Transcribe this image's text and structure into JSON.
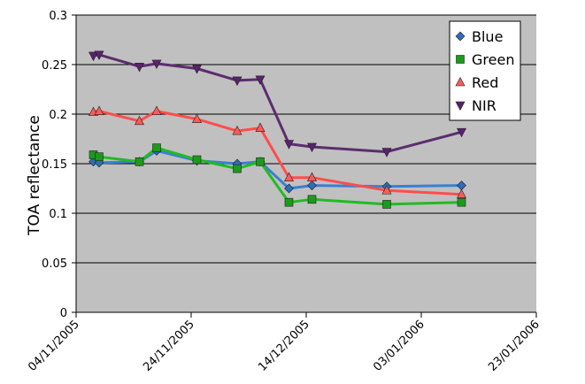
{
  "chart_data": {
    "type": "line",
    "title": "",
    "xlabel": "",
    "ylabel": "TOA reflectance",
    "x_ticks": [
      "04/11/2005",
      "24/11/2005",
      "14/12/2005",
      "03/01/2006",
      "23/01/2006"
    ],
    "xlim": [
      "2005-11-04",
      "2006-01-23"
    ],
    "ylim": [
      0,
      0.3
    ],
    "y_ticks": [
      "0",
      "0.05",
      "0.1",
      "0.15",
      "0.2",
      "0.25",
      "0.3"
    ],
    "grid": true,
    "legend_position": "top-right",
    "plot_background": "#c0c0c0",
    "x": [
      "2005-11-07",
      "2005-11-08",
      "2005-11-15",
      "2005-11-18",
      "2005-11-25",
      "2005-12-02",
      "2005-12-06",
      "2005-12-11",
      "2005-12-15",
      "2005-12-28",
      "2006-01-10"
    ],
    "series": [
      {
        "name": "Blue",
        "color": "#3a7fd5",
        "marker": "diamond",
        "marker_color": "#2e6db8",
        "values": [
          0.152,
          0.151,
          0.152,
          0.163,
          0.153,
          0.15,
          0.152,
          0.125,
          0.128,
          0.127,
          0.128
        ]
      },
      {
        "name": "Green",
        "color": "#22bb22",
        "marker": "square",
        "marker_color": "#1c9a1c",
        "values": [
          0.159,
          0.157,
          0.152,
          0.166,
          0.154,
          0.145,
          0.152,
          0.111,
          0.114,
          0.109,
          0.111
        ]
      },
      {
        "name": "Red",
        "color": "#ff4d4d",
        "marker": "triangle-up",
        "marker_color": "#ff5a5a",
        "values": [
          0.202,
          0.203,
          0.193,
          0.203,
          0.195,
          0.183,
          0.186,
          0.136,
          0.136,
          0.123,
          0.119
        ]
      },
      {
        "name": "NIR",
        "color": "#5c2d6e",
        "marker": "triangle-down",
        "marker_color": "#5a2270",
        "values": [
          0.259,
          0.26,
          0.248,
          0.251,
          0.246,
          0.234,
          0.235,
          0.17,
          0.167,
          0.162,
          0.182
        ]
      }
    ]
  }
}
